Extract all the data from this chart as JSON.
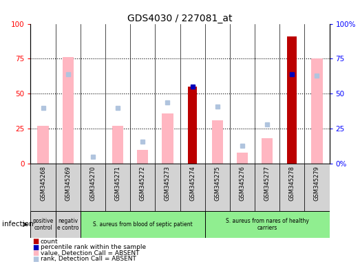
{
  "title": "GDS4030 / 227081_at",
  "samples": [
    "GSM345268",
    "GSM345269",
    "GSM345270",
    "GSM345271",
    "GSM345272",
    "GSM345273",
    "GSM345274",
    "GSM345275",
    "GSM345276",
    "GSM345277",
    "GSM345278",
    "GSM345279"
  ],
  "count_values": [
    null,
    null,
    null,
    null,
    null,
    null,
    55,
    null,
    null,
    null,
    91,
    null
  ],
  "rank_values": [
    null,
    null,
    null,
    null,
    null,
    null,
    55,
    null,
    null,
    null,
    64,
    null
  ],
  "absent_value": [
    27,
    76,
    null,
    27,
    10,
    36,
    null,
    31,
    8,
    18,
    null,
    75
  ],
  "absent_rank": [
    40,
    64,
    5,
    40,
    16,
    44,
    null,
    41,
    13,
    28,
    null,
    63
  ],
  "groups": [
    {
      "label": "positive\ncontrol",
      "start": 0,
      "end": 1,
      "color": "#d3d3d3"
    },
    {
      "label": "negativ\ne contro",
      "start": 1,
      "end": 2,
      "color": "#d3d3d3"
    },
    {
      "label": "S. aureus from blood of septic patient",
      "start": 2,
      "end": 7,
      "color": "#90ee90"
    },
    {
      "label": "S. aureus from nares of healthy\ncarriers",
      "start": 7,
      "end": 12,
      "color": "#90ee90"
    }
  ],
  "count_color": "#bb0000",
  "rank_color": "#0000bb",
  "absent_value_color": "#ffb6c1",
  "absent_rank_color": "#b0c4de",
  "cell_bg_color": "#d3d3d3",
  "legend_items": [
    {
      "color": "#bb0000",
      "label": "count"
    },
    {
      "color": "#0000bb",
      "label": "percentile rank within the sample"
    },
    {
      "color": "#ffb6c1",
      "label": "value, Detection Call = ABSENT"
    },
    {
      "color": "#b0c4de",
      "label": "rank, Detection Call = ABSENT"
    }
  ]
}
